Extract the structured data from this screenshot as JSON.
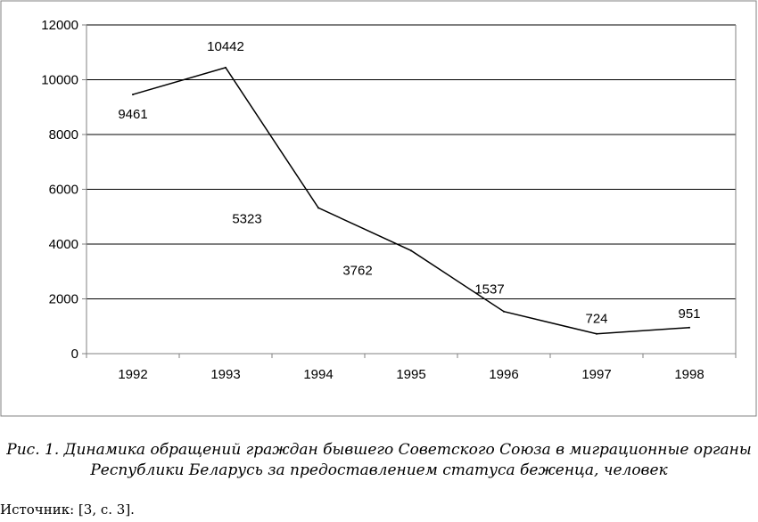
{
  "chart_data": {
    "type": "line",
    "title": "",
    "xlabel": "",
    "ylabel": "",
    "categories": [
      "1992",
      "1993",
      "1994",
      "1995",
      "1996",
      "1997",
      "1998"
    ],
    "series": [
      {
        "values": [
          9461,
          10442,
          5323,
          3762,
          1537,
          724,
          951
        ]
      }
    ],
    "data_labels": [
      "9461",
      "10442",
      "5323",
      "3762",
      "1537",
      "724",
      "951"
    ],
    "ylim": [
      0,
      12000
    ],
    "yticks": [
      "0",
      "2000",
      "4000",
      "6000",
      "8000",
      "10000",
      "12000"
    ],
    "grid": "horizontal",
    "legend": "none",
    "line_color": "#000000",
    "grid_color": "#000000",
    "frame_color": "#808080"
  },
  "caption": {
    "line1": "Рис. 1. Динамика обращений граждан бывшего Советского Союза в миграционные органы",
    "line2": "Республики Беларусь за предоставлением статуса беженца, человек"
  },
  "source": "Источник: [3, с. 3]."
}
